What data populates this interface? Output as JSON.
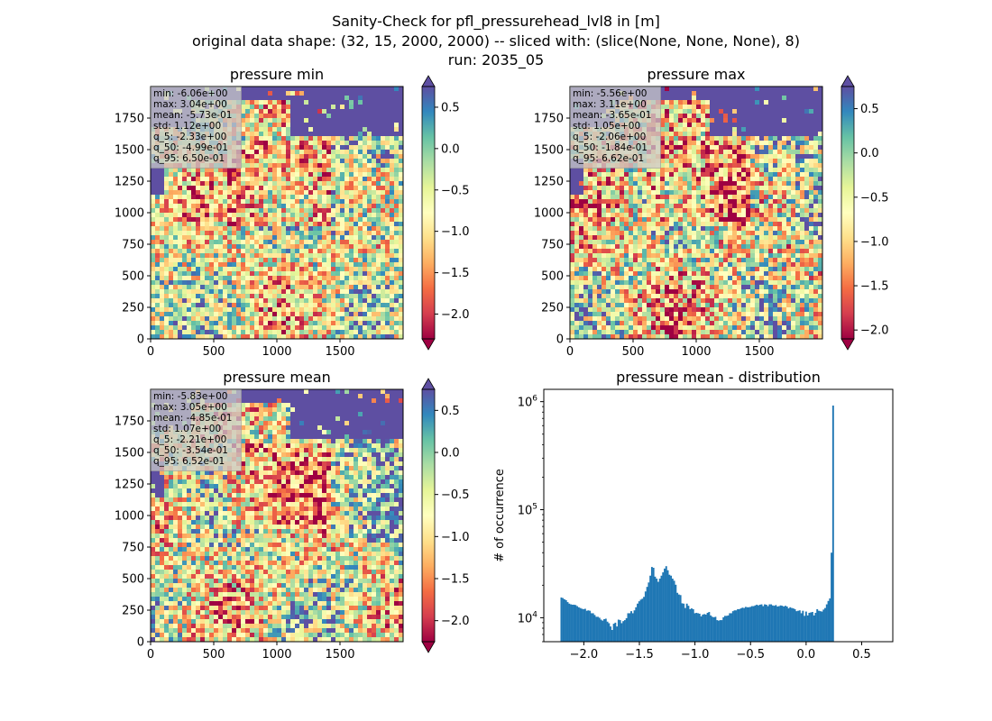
{
  "figure": {
    "title_lines": [
      "Sanity-Check for pfl_pressurehead_lvl8 in [m]",
      "original data shape: (32, 15, 2000, 2000) -- sliced with: (slice(None, None, None), 8)",
      "run: 2035_05"
    ]
  },
  "chart_data": [
    {
      "type": "heatmap",
      "title": "pressure min",
      "x_ticks": [
        "0",
        "500",
        "1000",
        "1500"
      ],
      "y_ticks": [
        "0",
        "250",
        "500",
        "750",
        "1000",
        "1250",
        "1500",
        "1750"
      ],
      "xlim": [
        0,
        2000
      ],
      "ylim": [
        0,
        2000
      ],
      "colormap": "Spectral",
      "colorbar": {
        "range": [
          -2.3,
          0.75
        ],
        "ticks": [
          -2.0,
          -1.5,
          -1.0,
          -0.5,
          0.0,
          0.5
        ],
        "tick_labels": [
          "−2.0",
          "−1.5",
          "−1.0",
          "−0.5",
          "0.0",
          "0.5"
        ],
        "extend": "both"
      },
      "stats_box": [
        "min: -6.06e+00",
        "max: 3.04e+00",
        "mean: -5.73e-01",
        "std: 1.12e+00",
        "q_5: -2.33e+00",
        "q_50: -4.99e-01",
        "q_95: 6.50e-01"
      ]
    },
    {
      "type": "heatmap",
      "title": "pressure max",
      "x_ticks": [
        "0",
        "500",
        "1000",
        "1500"
      ],
      "y_ticks": [
        "0",
        "250",
        "500",
        "750",
        "1000",
        "1250",
        "1500",
        "1750"
      ],
      "xlim": [
        0,
        2000
      ],
      "ylim": [
        0,
        2000
      ],
      "colormap": "Spectral",
      "colorbar": {
        "range": [
          -2.1,
          0.75
        ],
        "ticks": [
          -2.0,
          -1.5,
          -1.0,
          -0.5,
          0.0,
          0.5
        ],
        "tick_labels": [
          "−2.0",
          "−1.5",
          "−1.0",
          "−0.5",
          "0.0",
          "0.5"
        ],
        "extend": "both"
      },
      "stats_box": [
        "min: -5.56e+00",
        "max: 3.11e+00",
        "mean: -3.65e-01",
        "std: 1.05e+00",
        "q_5: -2.06e+00",
        "q_50: -1.84e-01",
        "q_95: 6.62e-01"
      ]
    },
    {
      "type": "heatmap",
      "title": "pressure mean",
      "x_ticks": [
        "0",
        "500",
        "1000",
        "1500"
      ],
      "y_ticks": [
        "0",
        "250",
        "500",
        "750",
        "1000",
        "1250",
        "1500",
        "1750"
      ],
      "xlim": [
        0,
        2000
      ],
      "ylim": [
        0,
        2000
      ],
      "colormap": "Spectral",
      "colorbar": {
        "range": [
          -2.25,
          0.75
        ],
        "ticks": [
          -2.0,
          -1.5,
          -1.0,
          -0.5,
          0.0,
          0.5
        ],
        "tick_labels": [
          "−2.0",
          "−1.5",
          "−1.0",
          "−0.5",
          "0.0",
          "0.5"
        ],
        "extend": "both"
      },
      "stats_box": [
        "min: -5.83e+00",
        "max: 3.05e+00",
        "mean: -4.85e-01",
        "std: 1.07e+00",
        "q_5: -2.21e+00",
        "q_50: -3.54e-01",
        "q_95: 6.52e-01"
      ]
    },
    {
      "type": "bar",
      "title": "pressure mean - distribution",
      "ylabel": "# of occurrence",
      "xlabel": "",
      "y_scale": "log",
      "ylim": [
        6000,
        1300000
      ],
      "xlim": [
        -2.36,
        0.78
      ],
      "x_ticks": [
        -2.0,
        -1.5,
        -1.0,
        -0.5,
        0.0,
        0.5
      ],
      "x_tick_labels": [
        "−2.0",
        "−1.5",
        "−1.0",
        "−0.5",
        "0.0",
        "0.5"
      ],
      "y_ticks": [
        10000,
        100000,
        1000000
      ],
      "y_tick_labels": [
        "10^4",
        "10^5",
        "10^6"
      ],
      "bar_color": "#1f77b4",
      "histogram": {
        "x_start": -2.21,
        "bin_width": 0.0143,
        "counts": [
          15390,
          15200,
          14800,
          14550,
          13950,
          13500,
          13300,
          13200,
          13200,
          13100,
          12800,
          12500,
          12300,
          12100,
          12000,
          12100,
          11600,
          11700,
          11600,
          11000,
          11000,
          10600,
          10200,
          10200,
          10000,
          9600,
          9400,
          9700,
          9800,
          9200,
          8900,
          8300,
          7700,
          8800,
          9000,
          8300,
          9600,
          9500,
          8900,
          9300,
          9500,
          9900,
          11000,
          11000,
          11500,
          11000,
          11700,
          12500,
          13500,
          14200,
          14700,
          15000,
          15600,
          17500,
          19300,
          21200,
          24500,
          29500,
          29000,
          24000,
          23000,
          21500,
          23000,
          24500,
          26300,
          28500,
          30000,
          27500,
          25000,
          24500,
          23000,
          22000,
          20200,
          17000,
          16400,
          16200,
          13600,
          13500,
          12300,
          13500,
          12900,
          12000,
          12200,
          12000,
          11000,
          11100,
          11000,
          10900,
          10300,
          10700,
          10800,
          10700,
          11100,
          11300,
          10500,
          10200,
          10100,
          10200,
          9500,
          9400,
          9500,
          9500,
          10100,
          10400,
          10400,
          10500,
          11000,
          11000,
          11500,
          11700,
          11700,
          12000,
          12000,
          12200,
          12400,
          12300,
          12600,
          12500,
          12500,
          12600,
          12800,
          12800,
          13000,
          13200,
          13000,
          13200,
          13300,
          12800,
          13300,
          13200,
          12800,
          13300,
          13300,
          13000,
          12900,
          13100,
          12700,
          12800,
          13000,
          12900,
          12700,
          12900,
          12700,
          12200,
          12500,
          12300,
          12200,
          12000,
          11500,
          11600,
          11700,
          11000,
          11600,
          10400,
          11400,
          10500,
          11100,
          11200,
          11300,
          10500,
          11100,
          12000,
          11600,
          11500,
          11400,
          11900,
          12300,
          13300,
          14300,
          15100,
          40000,
          920000
        ]
      }
    }
  ]
}
